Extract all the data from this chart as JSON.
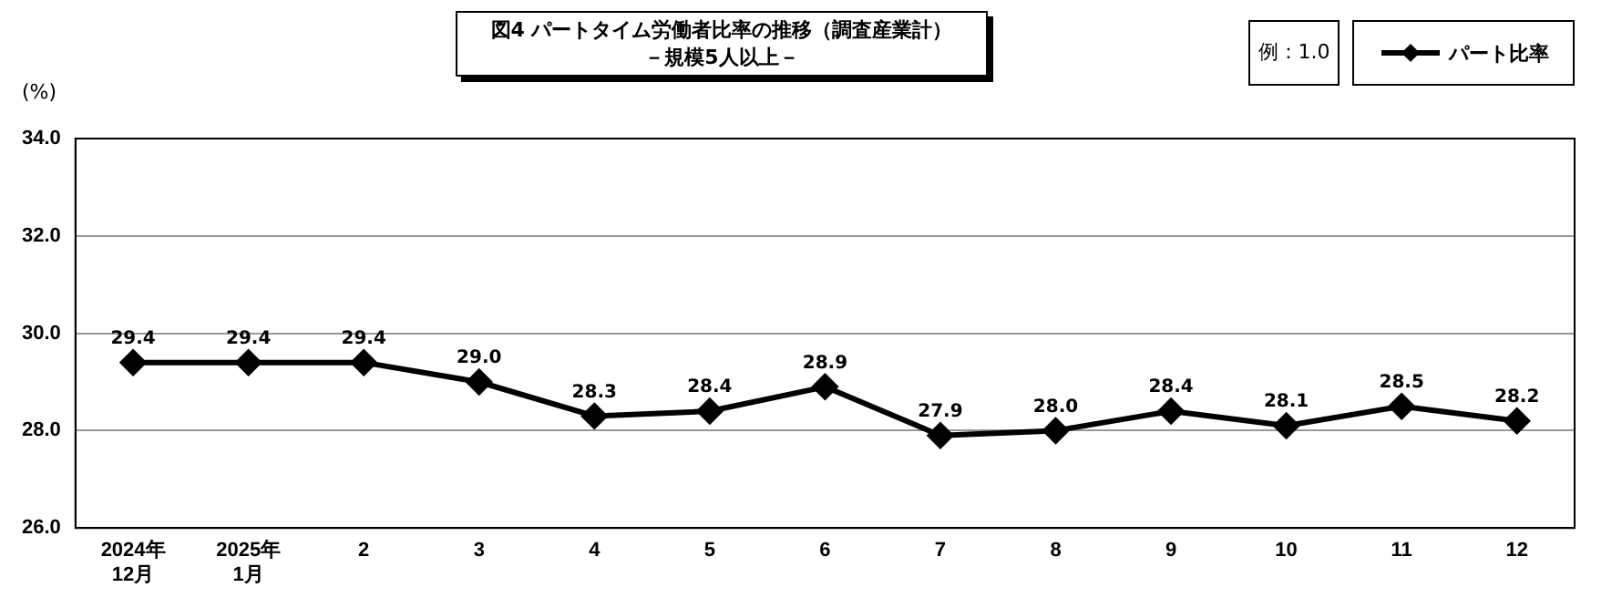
{
  "chart_data": {
    "type": "line",
    "title": "図4 パートタイム労働者比率の推移（調査産業計）",
    "subtitle": "－規模5人以上－",
    "ylabel": "(%)",
    "annotations": [
      "例：1.0"
    ],
    "categories": [
      "2024年\n12月",
      "2025年\n1月",
      "2",
      "3",
      "4",
      "5",
      "6",
      "7",
      "8",
      "9",
      "10",
      "11",
      "12"
    ],
    "series": [
      {
        "name": "パート比率",
        "color": "#000000",
        "values": [
          29.4,
          29.4,
          29.4,
          29.0,
          28.3,
          28.4,
          28.9,
          27.9,
          28.0,
          28.4,
          28.1,
          28.5,
          28.2
        ],
        "value_labels": [
          "29.4",
          "29.4",
          "29.4",
          "29.0",
          "28.3",
          "28.4",
          "28.9",
          "27.9",
          "28.0",
          "28.4",
          "28.1",
          "28.5",
          "28.2"
        ]
      }
    ],
    "ylim": [
      26,
      34
    ],
    "yticks": [
      {
        "value": 26,
        "label": "26.0"
      },
      {
        "value": 28,
        "label": "28.0"
      },
      {
        "value": 30,
        "label": "30.0"
      },
      {
        "value": 32,
        "label": "32.0"
      },
      {
        "value": 34,
        "label": "34.0"
      }
    ],
    "grid": "y",
    "legend": "top right",
    "marker": "diamond",
    "line_style": "solid"
  }
}
